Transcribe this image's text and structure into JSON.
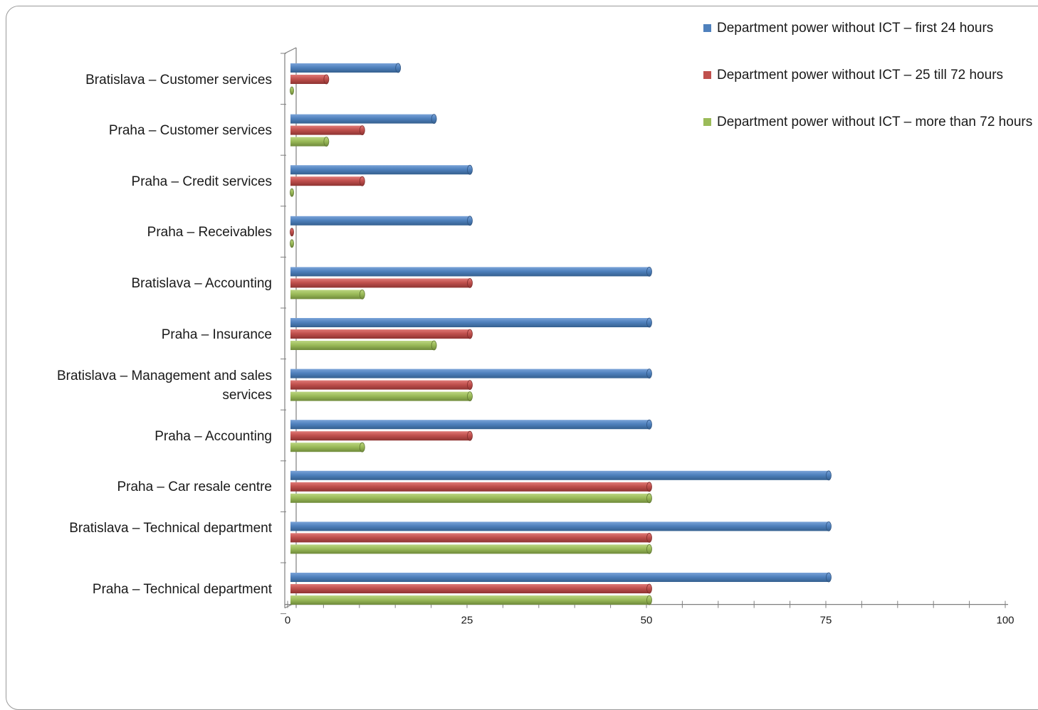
{
  "chart_data": {
    "type": "bar",
    "orientation": "horizontal",
    "style": "3d-cylinder",
    "title": "",
    "xlabel": "",
    "ylabel": "",
    "xlim": [
      0,
      100
    ],
    "x_ticks": [
      "0",
      "25",
      "50",
      "75",
      "100"
    ],
    "grid": false,
    "legend_position": "top-right",
    "categories": [
      "Bratislava – Customer services",
      "Praha – Customer services",
      "Praha – Credit services",
      "Praha – Receivables",
      "Bratislava – Accounting",
      "Praha – Insurance",
      "Bratislava – Management and sales services",
      "Praha – Accounting",
      "Praha – Car resale centre",
      "Bratislava – Technical department",
      "Praha – Technical department"
    ],
    "series": [
      {
        "name": "Department power without ICT – first 24 hours",
        "color": "#4f81bd",
        "values": [
          15,
          20,
          25,
          25,
          50,
          50,
          50,
          50,
          75,
          75,
          75
        ]
      },
      {
        "name": "Department power without ICT –  25 till 72 hours",
        "color": "#c0504d",
        "values": [
          5,
          10,
          10,
          0,
          25,
          25,
          25,
          25,
          50,
          50,
          50
        ]
      },
      {
        "name": "Department power without ICT –  more than 72 hours",
        "color": "#9bbb59",
        "values": [
          0,
          5,
          0,
          0,
          10,
          20,
          25,
          10,
          50,
          50,
          50
        ]
      }
    ]
  }
}
